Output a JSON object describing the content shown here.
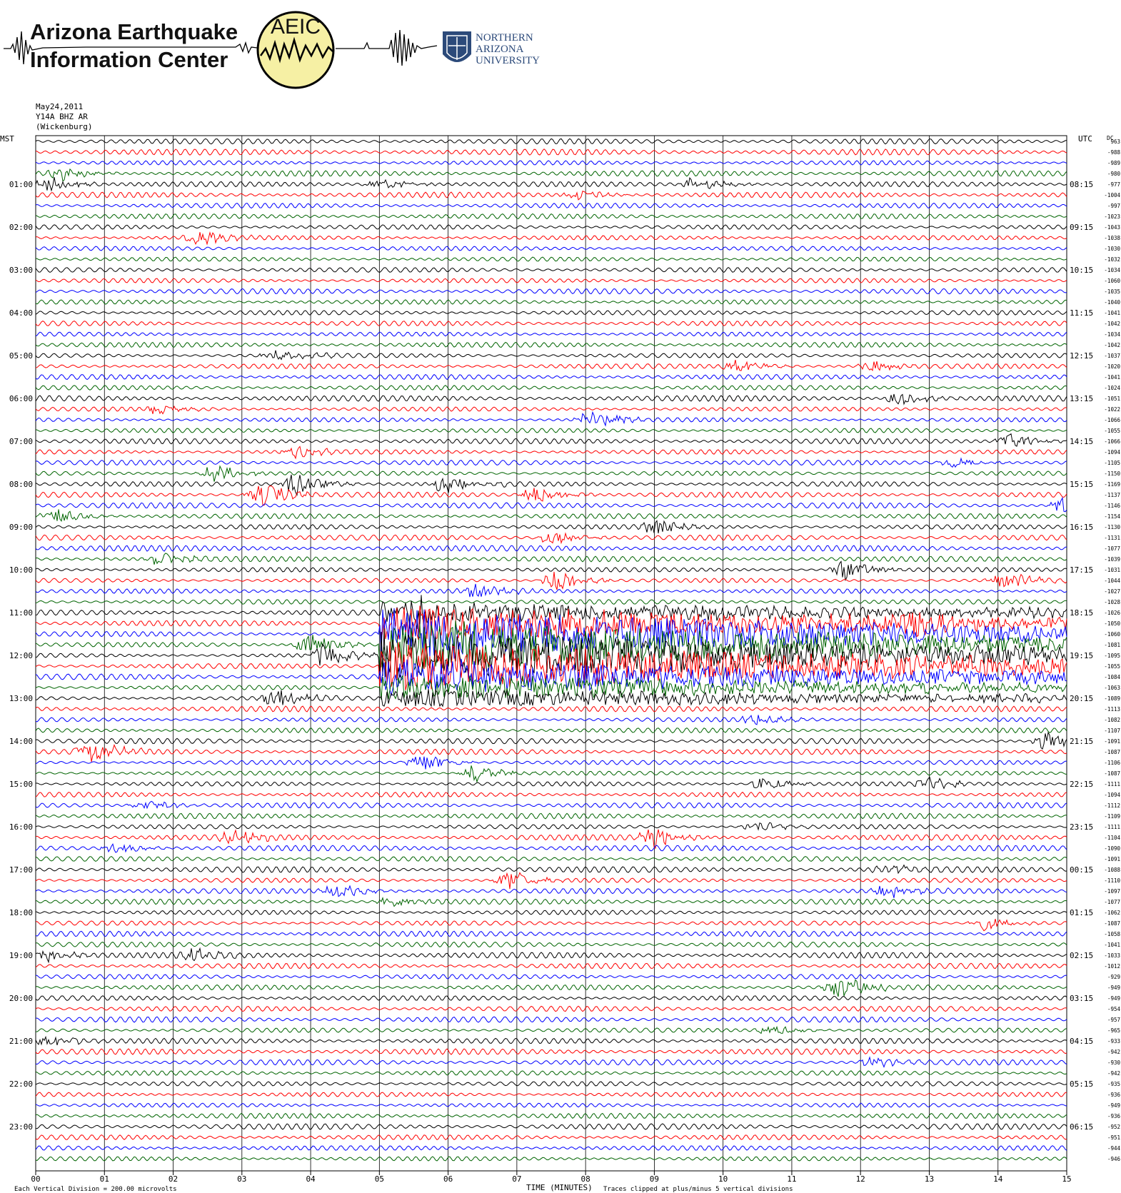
{
  "header": {
    "org_line1": "Arizona Earthquake",
    "org_line2": "Information Center",
    "logo_text": "AEIC",
    "university_line1": "NORTHERN",
    "university_line2": "ARIZONA",
    "university_line3": "UNIVERSITY"
  },
  "station": {
    "date": "May24,2011",
    "channel": "Y14A BHZ AR",
    "location": "(Wickenburg)"
  },
  "chart_data": {
    "type": "helicorder",
    "title": "",
    "left_axis_label": "MST",
    "right_axis_label": "UTC",
    "dc_label": "DC",
    "xlabel": "TIME (MINUTES)",
    "x_ticks": [
      "00",
      "01",
      "02",
      "03",
      "04",
      "05",
      "06",
      "07",
      "08",
      "09",
      "10",
      "11",
      "12",
      "13",
      "14",
      "15"
    ],
    "xlim": [
      0,
      15
    ],
    "trace_colors": [
      "#000000",
      "#ff0000",
      "#0000ff",
      "#006400"
    ],
    "traces_per_hour": 4,
    "mst_labels": [
      "01:00",
      "02:00",
      "03:00",
      "04:00",
      "05:00",
      "06:00",
      "07:00",
      "08:00",
      "09:00",
      "10:00",
      "11:00",
      "12:00",
      "13:00",
      "14:00",
      "15:00",
      "16:00",
      "17:00",
      "18:00",
      "19:00",
      "20:00",
      "21:00",
      "22:00",
      "23:00"
    ],
    "utc_labels": [
      "08:15",
      "09:15",
      "10:15",
      "11:15",
      "12:15",
      "13:15",
      "14:15",
      "15:15",
      "16:15",
      "17:15",
      "18:15",
      "19:15",
      "20:15",
      "21:15",
      "22:15",
      "23:15",
      "00:15",
      "01:15",
      "02:15",
      "03:15",
      "04:15",
      "05:15",
      "06:15"
    ],
    "dc_offsets": [
      "963",
      "-988",
      "-989",
      "-980",
      "-977",
      "-1004",
      "-997",
      "-1023",
      "-1043",
      "-1038",
      "-1030",
      "-1032",
      "-1034",
      "-1060",
      "-1035",
      "-1040",
      "-1041",
      "-1042",
      "-1034",
      "-1042",
      "-1037",
      "-1020",
      "-1041",
      "-1024",
      "-1051",
      "-1022",
      "-1066",
      "-1055",
      "-1066",
      "-1094",
      "-1105",
      "-1150",
      "-1169",
      "-1137",
      "-1146",
      "-1154",
      "-1130",
      "-1131",
      "-1077",
      "-1039",
      "-1031",
      "-1044",
      "-1027",
      "-1028",
      "-1026",
      "-1050",
      "-1060",
      "-1081",
      "-1095",
      "-1055",
      "-1084",
      "-1063",
      "-1089",
      "-1113",
      "-1082",
      "-1107",
      "-1091",
      "-1087",
      "-1106",
      "-1087",
      "-1111",
      "-1094",
      "-1112",
      "-1109",
      "-1111",
      "-1104",
      "-1090",
      "-1091",
      "-1088",
      "-1110",
      "-1097",
      "-1077",
      "-1062",
      "-1087",
      "-1058",
      "-1041",
      "-1033",
      "-1012",
      "-929",
      "-949",
      "-949",
      "-954",
      "-957",
      "-965",
      "-933",
      "-942",
      "-930",
      "-942",
      "-935",
      "-936",
      "-949",
      "-936",
      "-952",
      "-951",
      "-944",
      "-946"
    ],
    "events": [
      {
        "trace": 3,
        "minute": 0.4,
        "amp": 2.0
      },
      {
        "trace": 4,
        "minute": 0.2,
        "amp": 2.2
      },
      {
        "trace": 4,
        "minute": 5.0,
        "amp": 1.8
      },
      {
        "trace": 4,
        "minute": 9.6,
        "amp": 2.2
      },
      {
        "trace": 5,
        "minute": 7.9,
        "amp": 1.6
      },
      {
        "trace": 9,
        "minute": 2.4,
        "amp": 2.0
      },
      {
        "trace": 20,
        "minute": 3.5,
        "amp": 2.0
      },
      {
        "trace": 21,
        "minute": 10.2,
        "amp": 1.6
      },
      {
        "trace": 21,
        "minute": 12.2,
        "amp": 1.6
      },
      {
        "trace": 24,
        "minute": 12.6,
        "amp": 2.0
      },
      {
        "trace": 25,
        "minute": 1.8,
        "amp": 1.5
      },
      {
        "trace": 26,
        "minute": 8.1,
        "amp": 2.8
      },
      {
        "trace": 28,
        "minute": 14.2,
        "amp": 2.2
      },
      {
        "trace": 29,
        "minute": 3.8,
        "amp": 1.6
      },
      {
        "trace": 30,
        "minute": 13.4,
        "amp": 1.4
      },
      {
        "trace": 31,
        "minute": 2.6,
        "amp": 2.6
      },
      {
        "trace": 32,
        "minute": 3.8,
        "amp": 3.4
      },
      {
        "trace": 32,
        "minute": 6.0,
        "amp": 3.0
      },
      {
        "trace": 33,
        "minute": 3.3,
        "amp": 3.6
      },
      {
        "trace": 33,
        "minute": 7.3,
        "amp": 2.4
      },
      {
        "trace": 34,
        "minute": 15.0,
        "amp": 2.4
      },
      {
        "trace": 35,
        "minute": 0.3,
        "amp": 2.0
      },
      {
        "trace": 36,
        "minute": 9.0,
        "amp": 2.4
      },
      {
        "trace": 37,
        "minute": 7.5,
        "amp": 2.0
      },
      {
        "trace": 39,
        "minute": 1.8,
        "amp": 2.0
      },
      {
        "trace": 40,
        "minute": 11.8,
        "amp": 3.0
      },
      {
        "trace": 41,
        "minute": 7.6,
        "amp": 3.0
      },
      {
        "trace": 41,
        "minute": 14.1,
        "amp": 2.4
      },
      {
        "trace": 42,
        "minute": 6.4,
        "amp": 2.2
      },
      {
        "trace": 44,
        "minute": 5.5,
        "amp": 3.0
      },
      {
        "trace": 45,
        "minute": 12.6,
        "amp": 3.4
      },
      {
        "trace": 47,
        "minute": 4.0,
        "amp": 3.6
      },
      {
        "trace": 48,
        "minute": 4.2,
        "amp": 3.0
      },
      {
        "trace": 52,
        "minute": 3.5,
        "amp": 2.6
      },
      {
        "trace": 54,
        "minute": 10.5,
        "amp": 1.6
      },
      {
        "trace": 56,
        "minute": 14.7,
        "amp": 2.4
      },
      {
        "trace": 57,
        "minute": 0.8,
        "amp": 3.4
      },
      {
        "trace": 58,
        "minute": 5.6,
        "amp": 2.8
      },
      {
        "trace": 59,
        "minute": 6.4,
        "amp": 2.6
      },
      {
        "trace": 60,
        "minute": 10.6,
        "amp": 1.8
      },
      {
        "trace": 60,
        "minute": 13.0,
        "amp": 1.6
      },
      {
        "trace": 62,
        "minute": 1.6,
        "amp": 1.6
      },
      {
        "trace": 64,
        "minute": 10.5,
        "amp": 1.6
      },
      {
        "trace": 65,
        "minute": 2.9,
        "amp": 1.8
      },
      {
        "trace": 65,
        "minute": 9.0,
        "amp": 2.6
      },
      {
        "trace": 66,
        "minute": 1.2,
        "amp": 1.4
      },
      {
        "trace": 68,
        "minute": 12.4,
        "amp": 1.4
      },
      {
        "trace": 69,
        "minute": 6.9,
        "amp": 3.2
      },
      {
        "trace": 70,
        "minute": 4.4,
        "amp": 2.0
      },
      {
        "trace": 70,
        "minute": 12.4,
        "amp": 2.2
      },
      {
        "trace": 71,
        "minute": 5.2,
        "amp": 2.0
      },
      {
        "trace": 73,
        "minute": 13.8,
        "amp": 2.0
      },
      {
        "trace": 76,
        "minute": 0.2,
        "amp": 1.8
      },
      {
        "trace": 76,
        "minute": 2.3,
        "amp": 1.6
      },
      {
        "trace": 79,
        "minute": 11.7,
        "amp": 3.4
      },
      {
        "trace": 83,
        "minute": 10.7,
        "amp": 1.4
      },
      {
        "trace": 84,
        "minute": 0.2,
        "amp": 1.8
      },
      {
        "trace": 86,
        "minute": 12.2,
        "amp": 1.4
      }
    ],
    "mainshock": {
      "trace_start": 44,
      "trace_end": 52,
      "minute_start": 5.0,
      "minute_end": 15.0
    },
    "annotations": [
      "Each Vertical Division =  200.00 microvolts",
      "Traces clipped at plus/minus 5 vertical divisions"
    ]
  }
}
